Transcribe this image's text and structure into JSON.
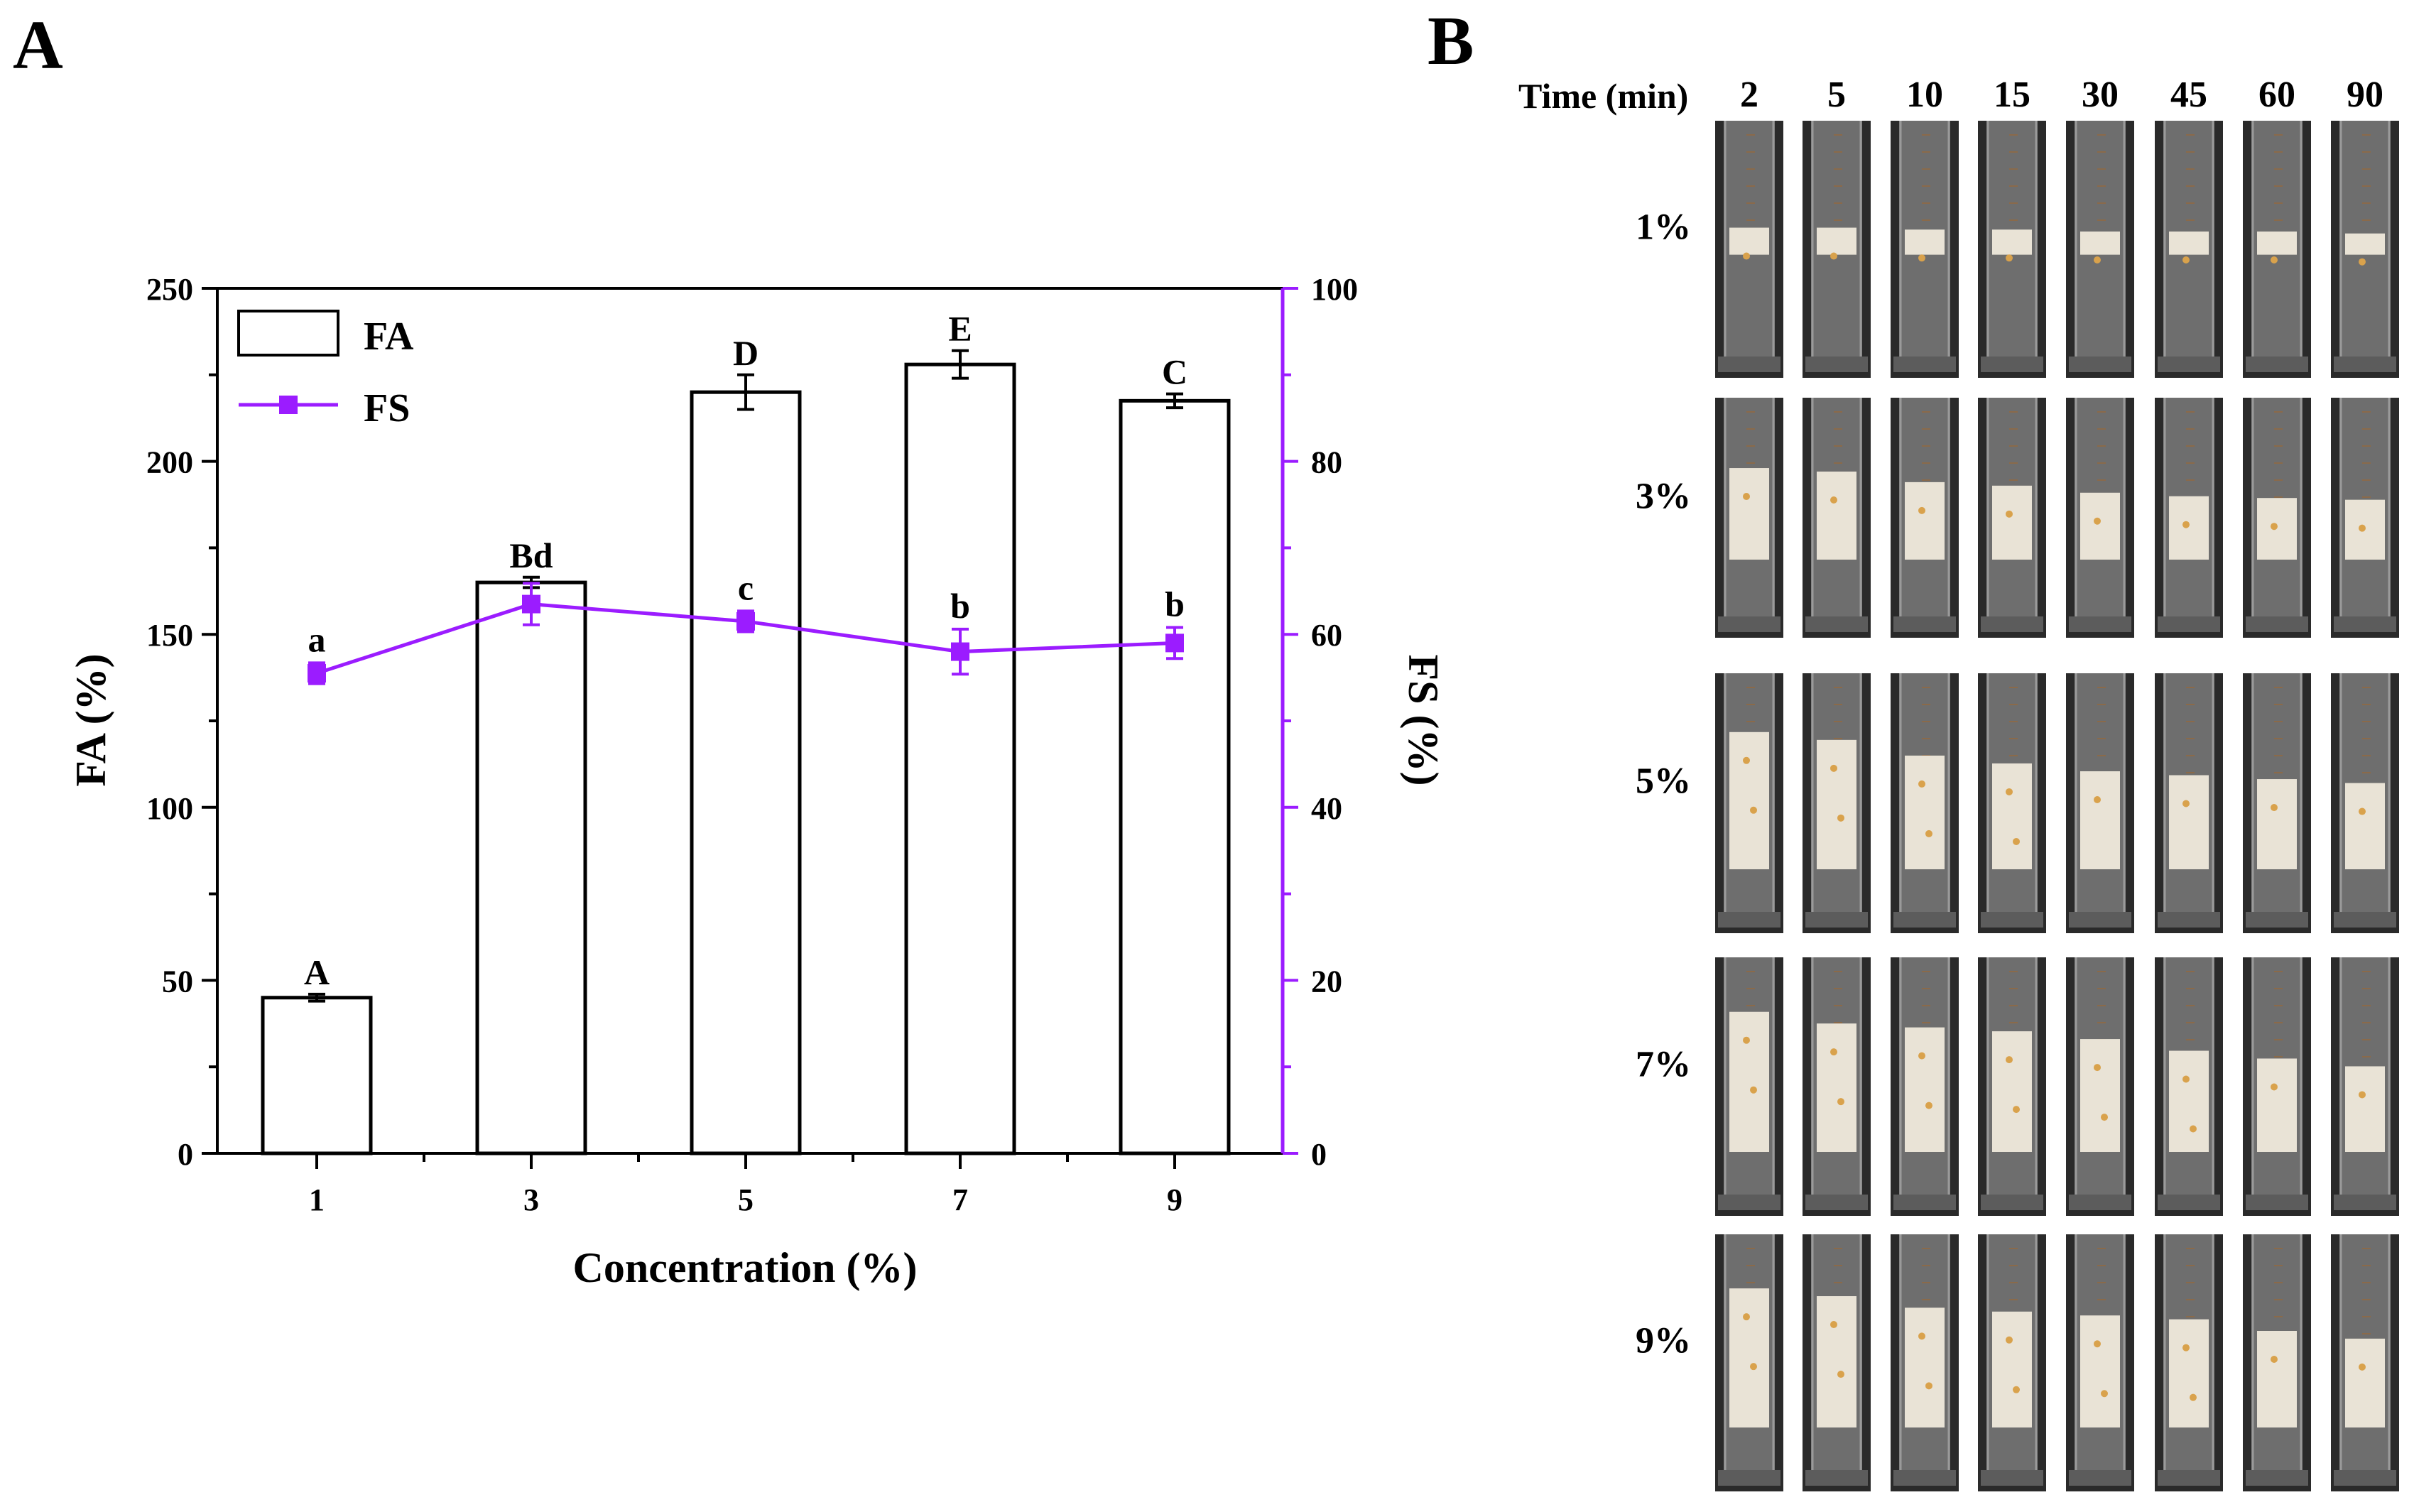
{
  "panels": {
    "a_label": "A",
    "b_label": "B"
  },
  "colors": {
    "fs_series": "#9b1cff",
    "axis": "#000000",
    "bar_fill": "#ffffff"
  },
  "chart_data": {
    "type": "bar",
    "title": "",
    "xlabel": "Concentration (%)",
    "ylabel": "FA (%)",
    "y2label": "FS (%)",
    "categories": [
      "1",
      "3",
      "5",
      "7",
      "9"
    ],
    "ylim": [
      0,
      250
    ],
    "y2lim": [
      0,
      100
    ],
    "yticks": [
      "0",
      "50",
      "100",
      "150",
      "200",
      "250"
    ],
    "y2ticks": [
      "0",
      "20",
      "40",
      "60",
      "80",
      "100"
    ],
    "legend_position": "top-left",
    "series": [
      {
        "name": "FA",
        "type": "bar",
        "axis": "left",
        "values": [
          45,
          165,
          220,
          228,
          217.5
        ],
        "errors": [
          1,
          1.5,
          5,
          4,
          2
        ],
        "letters": [
          "A",
          "Bd",
          "D",
          "E",
          "C"
        ]
      },
      {
        "name": "FS",
        "type": "line",
        "axis": "right",
        "values": [
          55.5,
          63.5,
          61.5,
          58,
          59
        ],
        "errors": [
          1.2,
          2.4,
          1.2,
          2.6,
          1.8
        ],
        "letters": [
          "a",
          "",
          "c",
          "b",
          "b"
        ]
      }
    ]
  },
  "photo_grid": {
    "time_header": "Time (min)",
    "times": [
      "2",
      "5",
      "10",
      "15",
      "30",
      "45",
      "60",
      "90"
    ],
    "concentrations": [
      "1%",
      "3%",
      "5%",
      "7%",
      "9%"
    ],
    "foam_height_fraction": [
      [
        0.14,
        0.14,
        0.13,
        0.13,
        0.12,
        0.12,
        0.12,
        0.11
      ],
      [
        0.52,
        0.5,
        0.44,
        0.42,
        0.38,
        0.36,
        0.35,
        0.34
      ],
      [
        0.7,
        0.66,
        0.58,
        0.54,
        0.5,
        0.48,
        0.46,
        0.44
      ],
      [
        0.72,
        0.66,
        0.64,
        0.62,
        0.58,
        0.52,
        0.48,
        0.44
      ],
      [
        0.72,
        0.68,
        0.62,
        0.6,
        0.58,
        0.56,
        0.5,
        0.46
      ]
    ]
  }
}
